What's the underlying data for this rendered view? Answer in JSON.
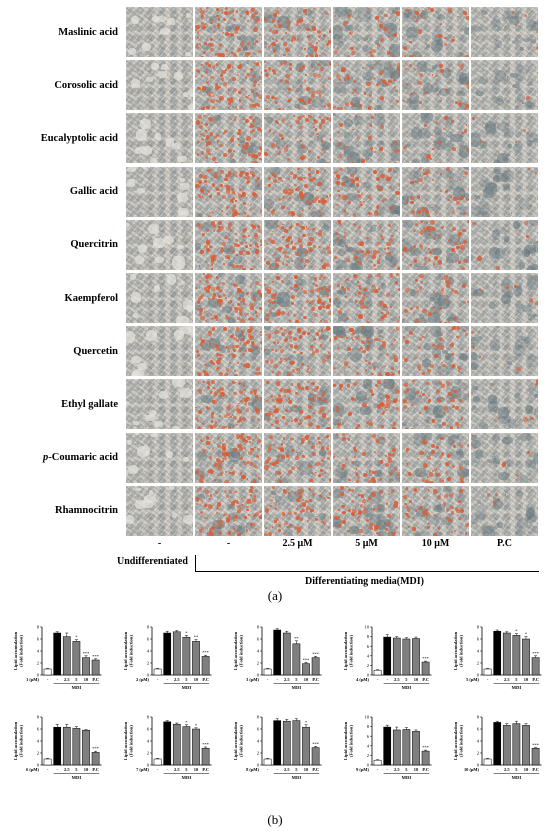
{
  "panel_a": {
    "rows": [
      {
        "label": "Maslinic acid",
        "italic_prefix": "",
        "rest": "Maslinic acid"
      },
      {
        "label": "Corosolic acid",
        "italic_prefix": "",
        "rest": "Corosolic acid"
      },
      {
        "label": "Eucalyptolic acid",
        "italic_prefix": "",
        "rest": "Eucalyptolic acid"
      },
      {
        "label": "Gallic acid",
        "italic_prefix": "",
        "rest": "Gallic acid"
      },
      {
        "label": "Quercitrin",
        "italic_prefix": "",
        "rest": "Quercitrin"
      },
      {
        "label": "Kaempferol",
        "italic_prefix": "",
        "rest": "Kaempferol"
      },
      {
        "label": "Quercetin",
        "italic_prefix": "",
        "rest": "Quercetin"
      },
      {
        "label": "Ethyl gallate",
        "italic_prefix": "",
        "rest": "Ethyl gallate"
      },
      {
        "label": "p-Coumaric acid",
        "italic_prefix": "p",
        "rest": "-Coumaric acid"
      },
      {
        "label": "Rhamnocitrin",
        "italic_prefix": "",
        "rest": "Rhamnocitrin"
      }
    ],
    "columns": [
      "-",
      "-",
      "2.5 μM",
      "5 μM",
      "10 μM",
      "P.C"
    ],
    "undifferentiated_label": "Undifferentiated",
    "mdi_label": "Differentiating media(MDI)",
    "stain_intensity": [
      [
        0.0,
        0.9,
        0.75,
        0.35,
        0.3,
        0.05
      ],
      [
        0.0,
        0.9,
        0.65,
        0.45,
        0.35,
        0.05
      ],
      [
        0.0,
        0.85,
        0.55,
        0.25,
        0.2,
        0.05
      ],
      [
        0.0,
        0.9,
        0.8,
        0.55,
        0.45,
        0.05
      ],
      [
        0.0,
        0.9,
        0.8,
        0.6,
        0.55,
        0.05
      ],
      [
        0.0,
        0.9,
        0.8,
        0.6,
        0.4,
        0.05
      ],
      [
        0.0,
        0.9,
        0.75,
        0.55,
        0.4,
        0.05
      ],
      [
        0.0,
        0.9,
        0.85,
        0.55,
        0.5,
        0.05
      ],
      [
        0.0,
        0.9,
        0.75,
        0.55,
        0.45,
        0.05
      ],
      [
        0.0,
        0.85,
        0.7,
        0.65,
        0.55,
        0.05
      ]
    ],
    "stain_color": "#d8603a",
    "caption": "(a)"
  },
  "panel_b": {
    "caption": "(b)",
    "ylabel_line1": "Lipid accumulation",
    "ylabel_line2": "(Fold induction)",
    "group_label": "MDI",
    "categories": [
      "-",
      "-",
      "2.5",
      "5",
      "10",
      "P.C"
    ],
    "colors": {
      "control": "#ffffff",
      "mdi": "#000000",
      "treated": "#7f7f7f"
    }
  },
  "chart_data": [
    {
      "type": "bar",
      "xprefix": "1 (μM)",
      "categories": [
        "-",
        "-",
        "2.5",
        "5",
        "10",
        "P.C"
      ],
      "values": [
        1.0,
        7.0,
        6.4,
        5.6,
        2.9,
        2.5
      ],
      "errors": [
        0.1,
        0.2,
        0.6,
        0.3,
        0.3,
        0.2
      ],
      "sig": [
        "",
        "",
        "",
        "*",
        "***",
        "***"
      ],
      "ylim": [
        0,
        8
      ],
      "yticks": [
        0,
        2,
        4,
        6,
        8
      ]
    },
    {
      "type": "bar",
      "xprefix": "2 (μM)",
      "categories": [
        "-",
        "-",
        "2.5",
        "5",
        "10",
        "P.C"
      ],
      "values": [
        1.0,
        7.0,
        7.2,
        6.3,
        5.6,
        3.1
      ],
      "errors": [
        0.1,
        0.3,
        0.2,
        0.3,
        0.3,
        0.2
      ],
      "sig": [
        "",
        "",
        "",
        "*",
        "**",
        "***"
      ],
      "ylim": [
        0,
        8
      ],
      "yticks": [
        0,
        2,
        4,
        6,
        8
      ]
    },
    {
      "type": "bar",
      "xprefix": "3 (μM)",
      "categories": [
        "-",
        "-",
        "2.5",
        "5",
        "10",
        "P.C"
      ],
      "values": [
        1.0,
        7.5,
        7.0,
        5.2,
        1.9,
        2.9
      ],
      "errors": [
        0.1,
        0.2,
        0.3,
        0.5,
        0.2,
        0.2
      ],
      "sig": [
        "",
        "",
        "",
        "**",
        "***",
        "***"
      ],
      "ylim": [
        0,
        8
      ],
      "yticks": [
        0,
        2,
        4,
        6,
        8
      ]
    },
    {
      "type": "bar",
      "xprefix": "4 (μM)",
      "categories": [
        "-",
        "-",
        "2.5",
        "5",
        "10",
        "P.C"
      ],
      "values": [
        1.0,
        7.9,
        7.7,
        7.5,
        7.6,
        2.7
      ],
      "errors": [
        0.1,
        0.5,
        0.3,
        0.3,
        0.3,
        0.2
      ],
      "sig": [
        "",
        "",
        "",
        "",
        "",
        "***"
      ],
      "ylim": [
        0,
        10
      ],
      "yticks": [
        0,
        2,
        4,
        6,
        8,
        10
      ]
    },
    {
      "type": "bar",
      "xprefix": "5 (μM)",
      "categories": [
        "-",
        "-",
        "2.5",
        "5",
        "10",
        "P.C"
      ],
      "values": [
        1.0,
        7.3,
        7.0,
        6.6,
        6.0,
        2.9
      ],
      "errors": [
        0.1,
        0.2,
        0.2,
        0.3,
        0.4,
        0.3
      ],
      "sig": [
        "",
        "",
        "",
        "*",
        "*",
        "***"
      ],
      "ylim": [
        0,
        8
      ],
      "yticks": [
        0,
        2,
        4,
        6,
        8
      ]
    },
    {
      "type": "bar",
      "xprefix": "6 (μM)",
      "categories": [
        "-",
        "-",
        "2.5",
        "5",
        "10",
        "P.C"
      ],
      "values": [
        1.0,
        6.3,
        6.3,
        6.1,
        5.8,
        2.1
      ],
      "errors": [
        0.1,
        0.5,
        0.5,
        0.3,
        0.1,
        0.2
      ],
      "sig": [
        "",
        "",
        "",
        "",
        "",
        "***"
      ],
      "ylim": [
        0,
        8
      ],
      "yticks": [
        0,
        2,
        4,
        6,
        8
      ]
    },
    {
      "type": "bar",
      "xprefix": "7 (μM)",
      "categories": [
        "-",
        "-",
        "2.5",
        "5",
        "10",
        "P.C"
      ],
      "values": [
        1.0,
        7.2,
        6.8,
        6.4,
        6.0,
        2.8
      ],
      "errors": [
        0.1,
        0.2,
        0.2,
        0.3,
        0.2,
        0.2
      ],
      "sig": [
        "",
        "",
        "",
        "*",
        "*",
        "***"
      ],
      "ylim": [
        0,
        8
      ],
      "yticks": [
        0,
        2,
        4,
        6,
        8
      ]
    },
    {
      "type": "bar",
      "xprefix": "8 (μM)",
      "categories": [
        "-",
        "-",
        "2.5",
        "5",
        "10",
        "P.C"
      ],
      "values": [
        1.0,
        7.4,
        7.3,
        7.4,
        6.3,
        2.9
      ],
      "errors": [
        0.1,
        0.3,
        0.3,
        0.3,
        0.4,
        0.2
      ],
      "sig": [
        "",
        "",
        "",
        "",
        "*",
        "***"
      ],
      "ylim": [
        0,
        8
      ],
      "yticks": [
        0,
        2,
        4,
        6,
        8
      ]
    },
    {
      "type": "bar",
      "xprefix": "9 (μM)",
      "categories": [
        "-",
        "-",
        "2.5",
        "5",
        "10",
        "P.C"
      ],
      "values": [
        1.0,
        7.9,
        7.3,
        7.4,
        7.0,
        2.9
      ],
      "errors": [
        0.1,
        0.4,
        0.6,
        0.4,
        0.3,
        0.2
      ],
      "sig": [
        "",
        "",
        "",
        "",
        "",
        "***"
      ],
      "ylim": [
        0,
        10
      ],
      "yticks": [
        0,
        2,
        4,
        6,
        8,
        10
      ]
    },
    {
      "type": "bar",
      "xprefix": "10 (μM)",
      "categories": [
        "-",
        "-",
        "2.5",
        "5",
        "10",
        "P.C"
      ],
      "values": [
        1.0,
        7.1,
        6.6,
        6.9,
        6.6,
        2.8
      ],
      "errors": [
        0.1,
        0.2,
        0.3,
        0.4,
        0.3,
        0.1
      ],
      "sig": [
        "",
        "",
        "",
        "",
        "",
        "***"
      ],
      "ylim": [
        0,
        8
      ],
      "yticks": [
        0,
        2,
        4,
        6,
        8
      ]
    }
  ]
}
